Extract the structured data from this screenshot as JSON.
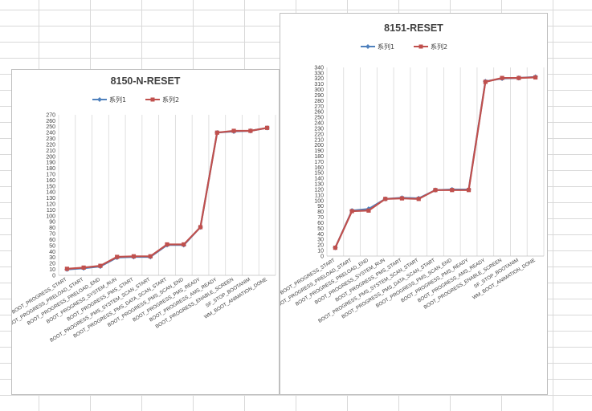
{
  "chart_data": [
    {
      "type": "line",
      "title": "8150-N-RESET",
      "xlabel": "",
      "ylabel": "",
      "categories": [
        "BOOT_PROGRESS_START",
        "BOOT_PROGRESS_PRELOAD_START",
        "BOOT_PROGRESS_PRELOAD_END",
        "BOOT_PROGRESS_SYSTEM_RUN",
        "BOOT_PROGRESS_PMS_START",
        "BOOT_PROGRESS_PMS_SYSTEM_SCAN_START",
        "BOOT_PROGRESS_PMS_DATA_SCAN_START",
        "BOOT_PROGRESS_PMS_SCAN_END",
        "BOOT_PROGRESS_PMS_READY",
        "BOOT_PROGRESS_AMS_READY",
        "BOOT_PROGRESS_ENABLE_SCREEN",
        "SF_STOP_BOOTANIM",
        "WM_BOOT_ANIMATION_DONE"
      ],
      "ylim": [
        0,
        270
      ],
      "ytick_step": 10,
      "grid": true,
      "legend_position": "top",
      "series": [
        {
          "name": "系列1",
          "color": "#4f81bd",
          "marker": "diamond",
          "values": [
            10,
            12,
            15,
            30,
            31,
            31,
            51,
            51,
            81,
            240,
            242,
            243,
            248
          ]
        },
        {
          "name": "系列2",
          "color": "#c0504d",
          "marker": "square",
          "values": [
            11,
            13,
            16,
            31,
            32,
            32,
            52,
            52,
            81,
            240,
            243,
            243,
            248
          ]
        }
      ]
    },
    {
      "type": "line",
      "title": "8151-RESET",
      "xlabel": "",
      "ylabel": "",
      "categories": [
        "BOOT_PROGRESS_START",
        "BOOT_PROGRESS_PRELOAD_START",
        "BOOT_PROGRESS_PRELOAD_END",
        "BOOT_PROGRESS_SYSTEM_RUN",
        "BOOT_PROGRESS_PMS_START",
        "BOOT_PROGRESS_PMS_SYSTEM_SCAN_START",
        "BOOT_PROGRESS_PMS_DATA_SCAN_START",
        "BOOT_PROGRESS_PMS_SCAN_END",
        "BOOT_PROGRESS_PMS_READY",
        "BOOT_PROGRESS_AMS_READY",
        "BOOT_PROGRESS_ENABLE_SCREEN",
        "SF_STOP_BOOTANIM",
        "WM_BOOT_ANIMATION_DONE"
      ],
      "ylim": [
        0,
        340
      ],
      "ytick_step": 10,
      "grid": true,
      "legend_position": "top",
      "series": [
        {
          "name": "系列1",
          "color": "#4f81bd",
          "marker": "diamond",
          "values": [
            15,
            82,
            85,
            103,
            105,
            104,
            119,
            120,
            120,
            315,
            320,
            321,
            323
          ]
        },
        {
          "name": "系列2",
          "color": "#c0504d",
          "marker": "square",
          "values": [
            15,
            81,
            82,
            103,
            104,
            103,
            119,
            119,
            119,
            314,
            321,
            321,
            322
          ]
        }
      ]
    }
  ]
}
